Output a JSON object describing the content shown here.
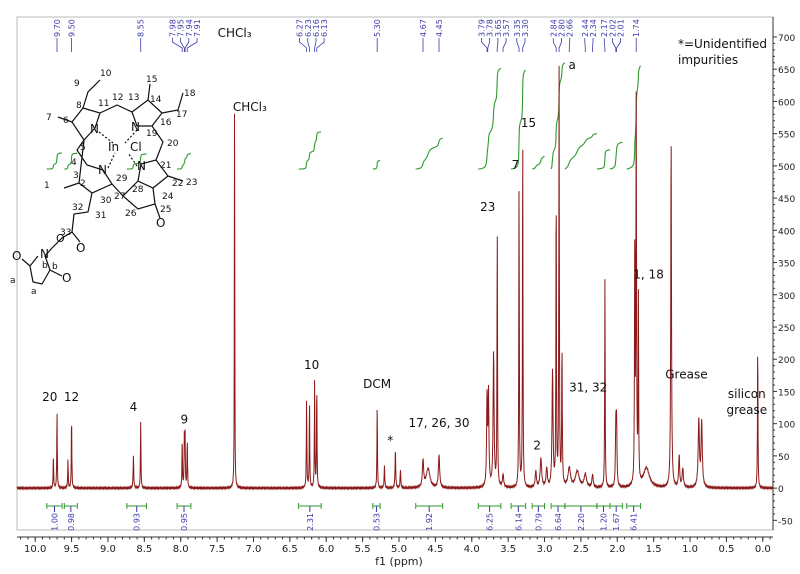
{
  "chart_data": {
    "type": "line",
    "xlabel": "f1 (ppm)",
    "ylabel": "",
    "xlim": [
      10.25,
      -0.14
    ],
    "ylim": [
      -65,
      731
    ],
    "x_reversed": true,
    "x_ticks": [
      10.0,
      9.5,
      9.0,
      8.5,
      8.0,
      7.5,
      7.0,
      6.5,
      6.0,
      5.5,
      5.0,
      4.5,
      4.0,
      3.5,
      3.0,
      2.5,
      2.0,
      1.5,
      1.0,
      0.5,
      0.0
    ],
    "x_tick_labels": [
      "10.0",
      "9.5",
      "9.0",
      "8.5",
      "8.0",
      "7.5",
      "7.0",
      "6.5",
      "6.0",
      "5.5",
      "5.0",
      "4.5",
      "4.0",
      "3.5",
      "3.0",
      "2.5",
      "2.0",
      "1.5",
      "1.0",
      "0.5",
      "0.0"
    ],
    "y_ticks": [
      -50,
      0,
      50,
      100,
      150,
      200,
      250,
      300,
      350,
      400,
      450,
      500,
      550,
      600,
      650,
      700
    ],
    "y_tick_labels": [
      "-50",
      "0",
      "50",
      "100",
      "150",
      "200",
      "250",
      "300",
      "350",
      "400",
      "450",
      "500",
      "550",
      "600",
      "650",
      "700"
    ],
    "y_axis_side": "right",
    "grid": false,
    "colors": {
      "spectrum": "#8b1a1a",
      "integral": "#2e9a2e",
      "peak_label": "#3a3aa8",
      "integral_label": "#3a3aa8"
    },
    "peaks": [
      [
        9.75,
        50,
        0.004
      ],
      [
        9.7,
        118,
        0.004
      ],
      [
        9.55,
        45,
        0.004
      ],
      [
        9.5,
        112,
        0.004
      ],
      [
        8.65,
        50,
        0.005
      ],
      [
        8.55,
        105,
        0.004
      ],
      [
        7.98,
        75,
        0.004
      ],
      [
        7.95,
        78,
        0.004
      ],
      [
        7.94,
        78,
        0.004
      ],
      [
        7.91,
        75,
        0.004
      ],
      [
        7.26,
        665,
        0.003
      ],
      [
        6.27,
        138,
        0.004
      ],
      [
        6.23,
        132,
        0.004
      ],
      [
        6.16,
        165,
        0.004
      ],
      [
        6.13,
        158,
        0.004
      ],
      [
        5.3,
        128,
        0.004
      ],
      [
        5.2,
        35,
        0.005
      ],
      [
        5.05,
        60,
        0.005
      ],
      [
        4.98,
        30,
        0.005
      ],
      [
        4.67,
        42,
        0.01
      ],
      [
        4.6,
        30,
        0.03
      ],
      [
        4.45,
        50,
        0.01
      ],
      [
        3.79,
        140,
        0.007
      ],
      [
        3.77,
        140,
        0.007
      ],
      [
        3.7,
        210,
        0.008
      ],
      [
        3.65,
        415,
        0.004
      ],
      [
        3.57,
        20,
        0.01
      ],
      [
        3.35,
        488,
        0.004
      ],
      [
        3.3,
        548,
        0.004
      ],
      [
        3.12,
        25,
        0.01
      ],
      [
        3.05,
        45,
        0.012
      ],
      [
        2.97,
        30,
        0.01
      ],
      [
        2.89,
        180,
        0.008
      ],
      [
        2.84,
        470,
        0.004
      ],
      [
        2.8,
        650,
        0.004
      ],
      [
        2.76,
        210,
        0.005
      ],
      [
        2.66,
        30,
        0.02
      ],
      [
        2.55,
        25,
        0.03
      ],
      [
        2.44,
        20,
        0.02
      ],
      [
        2.34,
        20,
        0.01
      ],
      [
        2.17,
        322,
        0.004
      ],
      [
        2.02,
        95,
        0.006
      ],
      [
        2.01,
        95,
        0.006
      ],
      [
        1.76,
        390,
        0.004
      ],
      [
        1.74,
        600,
        0.005
      ],
      [
        1.71,
        290,
        0.004
      ],
      [
        1.6,
        30,
        0.05
      ],
      [
        1.26,
        538,
        0.006
      ],
      [
        1.15,
        50,
        0.008
      ],
      [
        1.1,
        30,
        0.01
      ],
      [
        0.88,
        105,
        0.01
      ],
      [
        0.84,
        100,
        0.01
      ],
      [
        0.07,
        223,
        0.004
      ]
    ],
    "peak_labels": [
      "9.70",
      "9.50",
      "8.55",
      "7.98",
      "7.95",
      "7.94",
      "7.91",
      "6.27",
      "6.23",
      "6.16",
      "6.13",
      "5.30",
      "4.67",
      "4.45",
      "3.79",
      "3.78",
      "3.65",
      "3.57",
      "3.35",
      "3.30",
      "2.84",
      "2.80",
      "2.66",
      "2.44",
      "2.34",
      "2.17",
      "2.02",
      "2.01",
      "1.74"
    ],
    "integrals": [
      {
        "from": 9.84,
        "to": 9.63,
        "value": "1.00"
      },
      {
        "from": 9.6,
        "to": 9.42,
        "value": "0.98"
      },
      {
        "from": 8.74,
        "to": 8.47,
        "value": "0.93"
      },
      {
        "from": 8.05,
        "to": 7.86,
        "value": "0.95"
      },
      {
        "from": 6.38,
        "to": 6.07,
        "value": "2.31"
      },
      {
        "from": 5.36,
        "to": 5.26,
        "value": "0.53"
      },
      {
        "from": 4.77,
        "to": 4.4,
        "value": "1.92"
      },
      {
        "from": 3.91,
        "to": 3.6,
        "value": "6.25"
      },
      {
        "from": 3.46,
        "to": 3.26,
        "value": "6.14"
      },
      {
        "from": 3.17,
        "to": 3.0,
        "value": "0.79"
      },
      {
        "from": 2.91,
        "to": 2.72,
        "value": "6.64"
      },
      {
        "from": 2.72,
        "to": 2.28,
        "value": "2.20"
      },
      {
        "from": 2.28,
        "to": 2.1,
        "value": "1.20"
      },
      {
        "from": 2.1,
        "to": 1.93,
        "value": "1.67"
      },
      {
        "from": 1.87,
        "to": 1.68,
        "value": "6.41"
      }
    ],
    "annotations": [
      {
        "text": "20",
        "ppm": 9.8,
        "y": 135
      },
      {
        "text": "12",
        "ppm": 9.5,
        "y": 135
      },
      {
        "text": "4",
        "ppm": 8.65,
        "y": 120
      },
      {
        "text": "9",
        "ppm": 7.95,
        "y": 100
      },
      {
        "text": "CHCl₃",
        "ppm": 7.26,
        "y": 700
      },
      {
        "text": "CHCl₃",
        "ppm": 7.05,
        "y": 585
      },
      {
        "text": "10",
        "ppm": 6.2,
        "y": 185
      },
      {
        "text": "DCM",
        "ppm": 5.3,
        "y": 155
      },
      {
        "text": "*",
        "ppm": 5.12,
        "y": 68
      },
      {
        "text": "17, 26, 30",
        "ppm": 4.45,
        "y": 95
      },
      {
        "text": "23",
        "ppm": 3.78,
        "y": 430
      },
      {
        "text": "7",
        "ppm": 3.4,
        "y": 495
      },
      {
        "text": "15",
        "ppm": 3.22,
        "y": 560
      },
      {
        "text": "2",
        "ppm": 3.1,
        "y": 60
      },
      {
        "text": "a",
        "ppm": 2.62,
        "y": 650
      },
      {
        "text": "31, 32",
        "ppm": 2.4,
        "y": 150
      },
      {
        "text": "1, 18",
        "ppm": 1.57,
        "y": 325
      },
      {
        "text": "Grease",
        "ppm": 1.05,
        "y": 170
      },
      {
        "text": "silicon",
        "ppm": 0.22,
        "y": 140
      },
      {
        "text": "grease",
        "ppm": 0.22,
        "y": 115
      }
    ],
    "legend_note": [
      "*=Unidentified",
      "impurities"
    ]
  },
  "structure": {
    "atom_labels": [
      "10",
      "9",
      "8",
      "11",
      "12",
      "13",
      "15",
      "14",
      "18",
      "17",
      "7",
      "6",
      "16",
      "19",
      "20",
      "5",
      "4",
      "3",
      "2",
      "1",
      "29",
      "28",
      "27",
      "24",
      "21",
      "22",
      "23",
      "30",
      "25",
      "26",
      "32",
      "31",
      "33",
      "b",
      "b",
      "a",
      "a"
    ],
    "element_labels": [
      "N",
      "N",
      "N",
      "N",
      "In",
      "Cl",
      "O",
      "O",
      "O",
      "O",
      "N",
      "O"
    ]
  }
}
